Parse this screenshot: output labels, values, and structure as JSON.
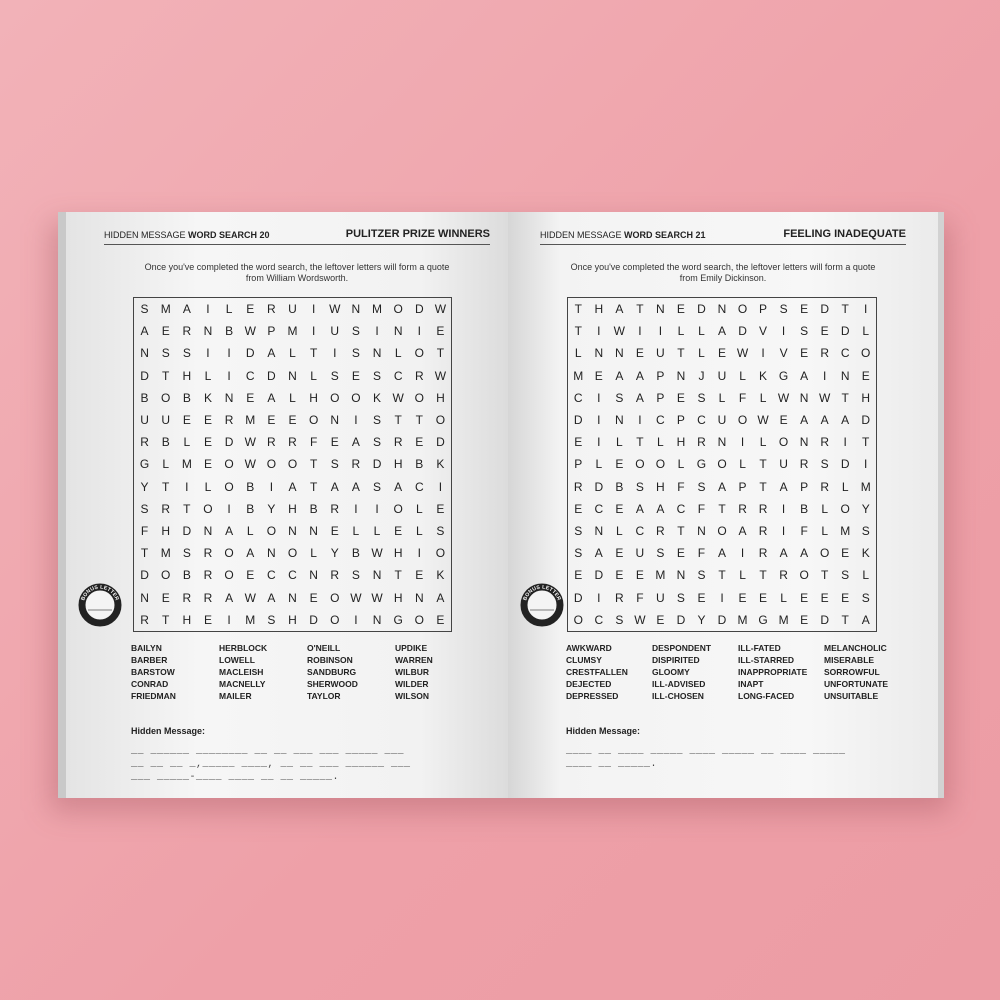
{
  "colors": {
    "background": "#ef a7ad",
    "page": "#f4f4f4"
  },
  "left": {
    "header_prefix": "HIDDEN MESSAGE",
    "header_title": "WORD SEARCH 20",
    "theme": "PULITZER PRIZE WINNERS",
    "intro_1": "Once you've completed the word search, the leftover letters will form a quote",
    "intro_2": "from William Wordsworth.",
    "grid": [
      "SMAILERUIWNMODW",
      "AERNBWPMIUSINIE",
      "NSSIIDALTISNLOT",
      "DTHLICDNLSESCRW",
      "BOBKNEALHOOKWOH",
      "UUEERMEEONISTTO",
      "RBLEDWRRFEASRED",
      "GLMEOWOOTSRDHBK",
      "YTILOBIATAASACI",
      "SRTOIBYHBRIIOLE",
      "FHDNALONNELLELS",
      "TMSROANOLYBWHIO",
      "DOBROECCNRSNTEK",
      "NERRAWANEOWWHNA",
      "RTHEIMSHDOINGOE"
    ],
    "bonus_label": "BONUS LETTER",
    "words": [
      [
        "BAILYN",
        "BARBER",
        "BARSTOW",
        "CONRAD",
        "FRIEDMAN"
      ],
      [
        "HERBLOCK",
        "LOWELL",
        "MACLEISH",
        "MACNELLY",
        "MAILER"
      ],
      [
        "O'NEILL",
        "ROBINSON",
        "SANDBURG",
        "SHERWOOD",
        "TAYLOR"
      ],
      [
        "UPDIKE",
        "WARREN",
        "WILBUR",
        "WILDER",
        "WILSON"
      ]
    ],
    "hidden_label": "Hidden Message:",
    "hidden_lines": [
      "__ ______ ________ __ __ ___ ___ _____ ___",
      "__ __ __ _,_____ ____, __ __ ___ ______ ___",
      "___ _____-____ ____ __ __ _____."
    ]
  },
  "right": {
    "header_prefix": "HIDDEN MESSAGE",
    "header_title": "WORD SEARCH 21",
    "theme": "FEELING INADEQUATE",
    "intro_1": "Once you've completed the word search, the leftover letters will form a quote",
    "intro_2": "from Emily Dickinson.",
    "grid": [
      "THATNEDNOPSEDTI",
      "TIWIILLADVISEDL",
      "LNNEUTLEWIVERCO",
      "MEAAPNJULKGAINE",
      "CISAPESLFLWNWTH",
      "DINICPCUOWEAAAD",
      "EILTLHRNILONRIT",
      "PLEOOLGOLTURSDI",
      "RDBSHFSAPTAPRLM",
      "ECEAACFTRRIBLOY",
      "SNLCRTNOARIFLMS",
      "SAEUSEFAIRAAOEK",
      "EDEEMNSTLTROTSL",
      "DIRFUSEIEELEEES",
      "OCSWEDYDMGMEDTA"
    ],
    "bonus_label": "BONUS LETTER",
    "words": [
      [
        "AWKWARD",
        "CLUMSY",
        "CRESTFALLEN",
        "DEJECTED",
        "DEPRESSED"
      ],
      [
        "DESPONDENT",
        "DISPIRITED",
        "GLOOMY",
        "ILL-ADVISED",
        "ILL-CHOSEN"
      ],
      [
        "ILL-FATED",
        "ILL-STARRED",
        "INAPPROPRIATE",
        "INAPT",
        "LONG-FACED"
      ],
      [
        "MELANCHOLIC",
        "MISERABLE",
        "SORROWFUL",
        "UNFORTUNATE",
        "UNSUITABLE"
      ]
    ],
    "hidden_label": "Hidden Message:",
    "hidden_lines": [
      "____ __ ____ _____ ____ _____ __ ____ _____",
      "____ __ _____."
    ]
  }
}
